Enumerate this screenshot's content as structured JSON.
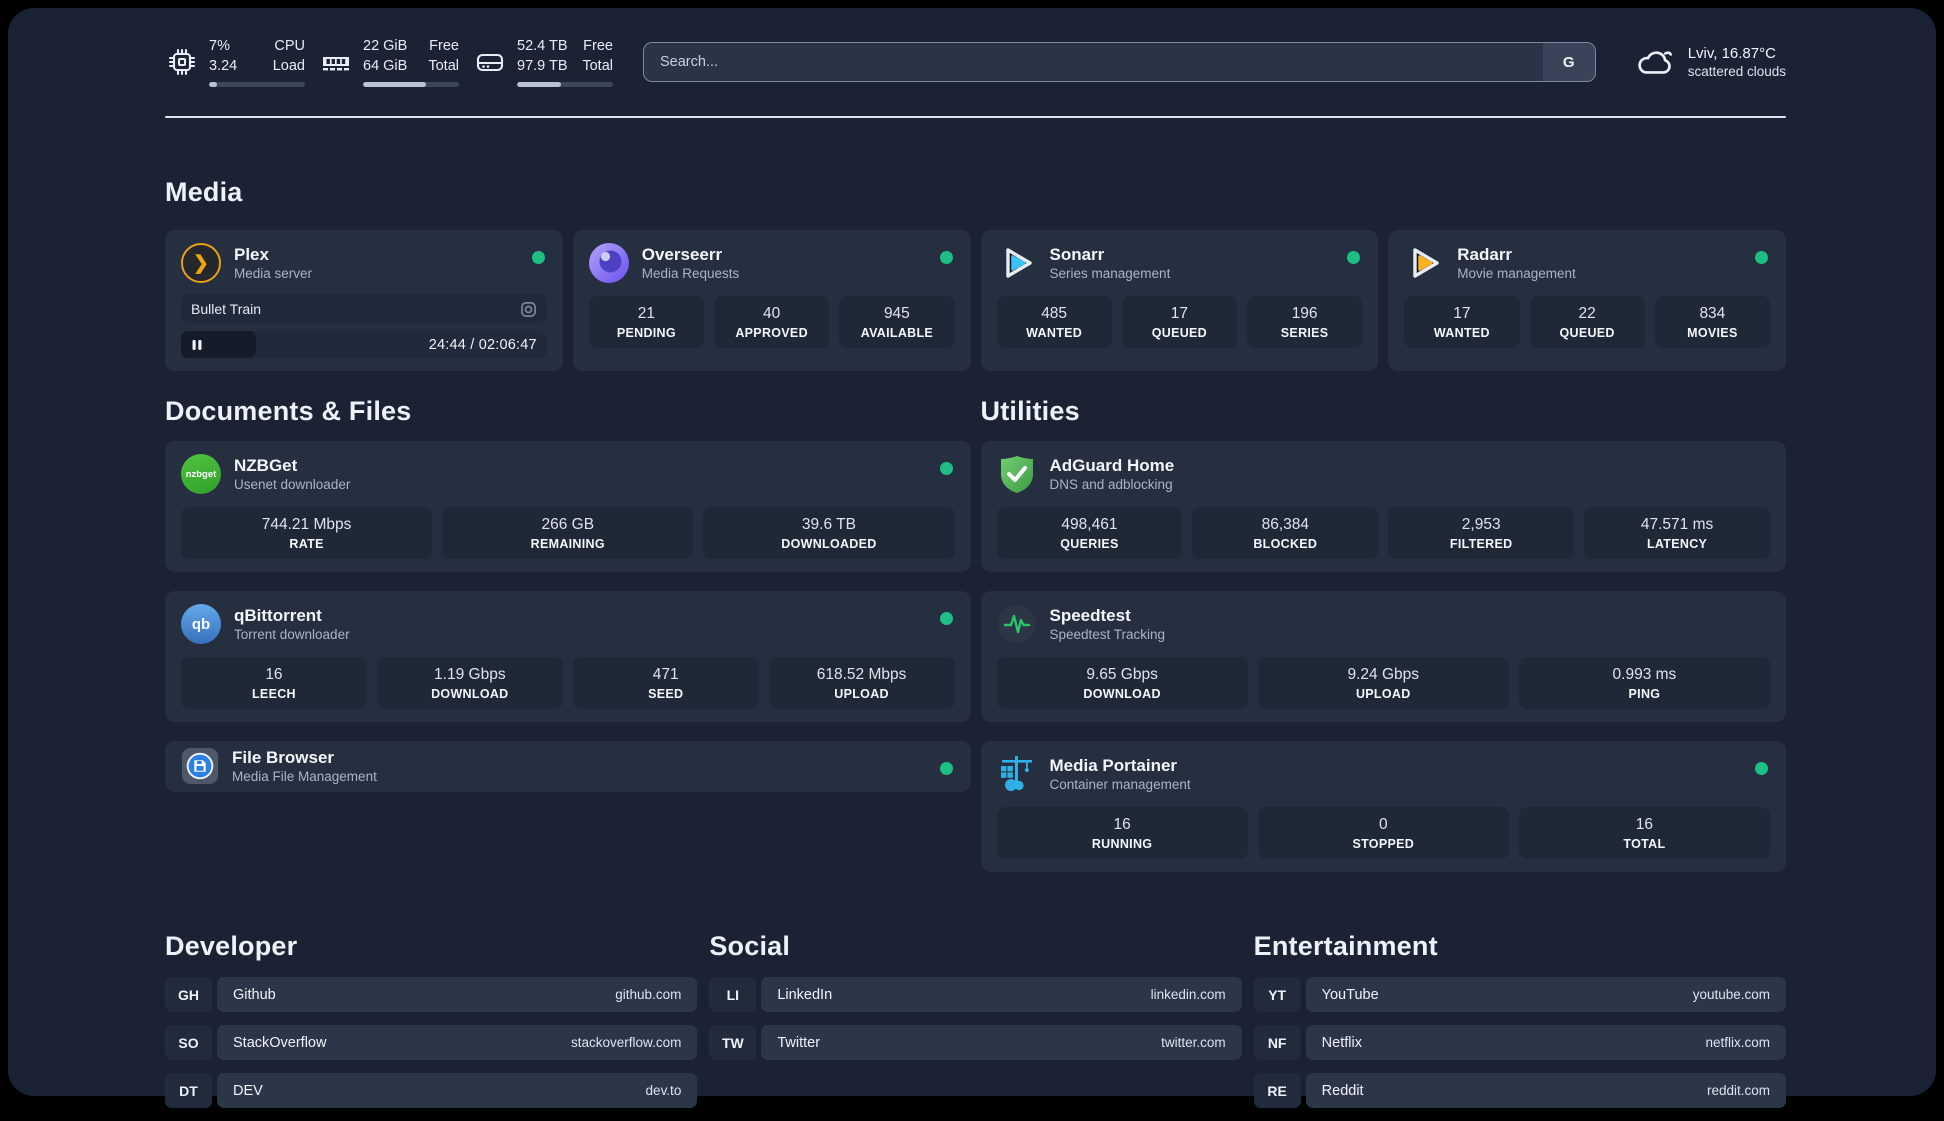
{
  "topbar": {
    "stats": [
      {
        "icon": "cpu-icon",
        "v1": "7%",
        "v2": "3.24",
        "l1": "CPU",
        "l2": "Load",
        "progress": 8
      },
      {
        "icon": "ram-icon",
        "v1": "22 GiB",
        "v2": "64 GiB",
        "l1": "Free",
        "l2": "Total",
        "progress": 66
      },
      {
        "icon": "disk-icon",
        "v1": "52.4 TB",
        "v2": "97.9 TB",
        "l1": "Free",
        "l2": "Total",
        "progress": 46
      }
    ],
    "search": {
      "placeholder": "Search...",
      "button": "G"
    },
    "weather": {
      "location_temp": "Lviv, 16.87°C",
      "condition": "scattered clouds"
    }
  },
  "media": {
    "header": "Media",
    "plex": {
      "title": "Plex",
      "subtitle": "Media server",
      "icon_text": "❯",
      "now_playing": "Bullet Train",
      "time": "24:44 / 02:06:47"
    },
    "overseerr": {
      "title": "Overseerr",
      "subtitle": "Media Requests",
      "stats": [
        {
          "value": "21",
          "label": "PENDING"
        },
        {
          "value": "40",
          "label": "APPROVED"
        },
        {
          "value": "945",
          "label": "AVAILABLE"
        }
      ]
    },
    "sonarr": {
      "title": "Sonarr",
      "subtitle": "Series management",
      "stats": [
        {
          "value": "485",
          "label": "WANTED"
        },
        {
          "value": "17",
          "label": "QUEUED"
        },
        {
          "value": "196",
          "label": "SERIES"
        }
      ]
    },
    "radarr": {
      "title": "Radarr",
      "subtitle": "Movie management",
      "stats": [
        {
          "value": "17",
          "label": "WANTED"
        },
        {
          "value": "22",
          "label": "QUEUED"
        },
        {
          "value": "834",
          "label": "MOVIES"
        }
      ]
    }
  },
  "documents": {
    "header": "Documents & Files",
    "nzbget": {
      "title": "NZBGet",
      "subtitle": "Usenet downloader",
      "icon_text": "nzbget",
      "stats": [
        {
          "value": "744.21 Mbps",
          "label": "RATE"
        },
        {
          "value": "266 GB",
          "label": "REMAINING"
        },
        {
          "value": "39.6 TB",
          "label": "DOWNLOADED"
        }
      ]
    },
    "qbittorrent": {
      "title": "qBittorrent",
      "subtitle": "Torrent downloader",
      "icon_text": "qb",
      "stats": [
        {
          "value": "16",
          "label": "LEECH"
        },
        {
          "value": "1.19 Gbps",
          "label": "DOWNLOAD"
        },
        {
          "value": "471",
          "label": "SEED"
        },
        {
          "value": "618.52 Mbps",
          "label": "UPLOAD"
        }
      ]
    },
    "filebrowser": {
      "title": "File Browser",
      "subtitle": "Media File Management"
    }
  },
  "utilities": {
    "header": "Utilities",
    "adguard": {
      "title": "AdGuard Home",
      "subtitle": "DNS and adblocking",
      "stats": [
        {
          "value": "498,461",
          "label": "QUERIES"
        },
        {
          "value": "86,384",
          "label": "BLOCKED"
        },
        {
          "value": "2,953",
          "label": "FILTERED"
        },
        {
          "value": "47.571 ms",
          "label": "LATENCY"
        }
      ]
    },
    "speedtest": {
      "title": "Speedtest",
      "subtitle": "Speedtest Tracking",
      "stats": [
        {
          "value": "9.65 Gbps",
          "label": "DOWNLOAD"
        },
        {
          "value": "9.24 Gbps",
          "label": "UPLOAD"
        },
        {
          "value": "0.993 ms",
          "label": "PING"
        }
      ]
    },
    "portainer": {
      "title": "Media Portainer",
      "subtitle": "Container management",
      "stats": [
        {
          "value": "16",
          "label": "RUNNING"
        },
        {
          "value": "0",
          "label": "STOPPED"
        },
        {
          "value": "16",
          "label": "TOTAL"
        }
      ]
    }
  },
  "links": {
    "developer": {
      "header": "Developer",
      "items": [
        {
          "abbr": "GH",
          "name": "Github",
          "url": "github.com"
        },
        {
          "abbr": "SO",
          "name": "StackOverflow",
          "url": "stackoverflow.com"
        },
        {
          "abbr": "DT",
          "name": "DEV",
          "url": "dev.to"
        }
      ]
    },
    "social": {
      "header": "Social",
      "items": [
        {
          "abbr": "LI",
          "name": "LinkedIn",
          "url": "linkedin.com"
        },
        {
          "abbr": "TW",
          "name": "Twitter",
          "url": "twitter.com"
        }
      ]
    },
    "entertainment": {
      "header": "Entertainment",
      "items": [
        {
          "abbr": "YT",
          "name": "YouTube",
          "url": "youtube.com"
        },
        {
          "abbr": "NF",
          "name": "Netflix",
          "url": "netflix.com"
        },
        {
          "abbr": "RE",
          "name": "Reddit",
          "url": "reddit.com"
        }
      ]
    }
  }
}
